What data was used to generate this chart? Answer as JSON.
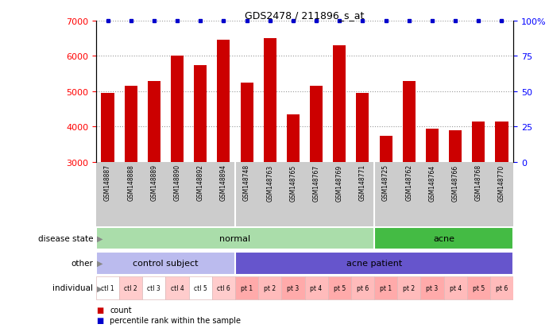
{
  "title": "GDS2478 / 211896_s_at",
  "samples": [
    "GSM148887",
    "GSM148888",
    "GSM148889",
    "GSM148890",
    "GSM148892",
    "GSM148894",
    "GSM148748",
    "GSM148763",
    "GSM148765",
    "GSM148767",
    "GSM148769",
    "GSM148771",
    "GSM148725",
    "GSM148762",
    "GSM148764",
    "GSM148766",
    "GSM148768",
    "GSM148770"
  ],
  "counts": [
    4950,
    5150,
    5300,
    6000,
    5750,
    6450,
    5250,
    6500,
    4350,
    5150,
    6300,
    4950,
    3750,
    5300,
    3950,
    3900,
    4150,
    4150
  ],
  "percentiles": [
    100,
    100,
    100,
    100,
    100,
    100,
    100,
    100,
    100,
    100,
    100,
    100,
    100,
    100,
    100,
    100,
    100,
    100
  ],
  "bar_color": "#cc0000",
  "dot_color": "#0000cc",
  "ylim_left": [
    3000,
    7000
  ],
  "ylim_right": [
    0,
    100
  ],
  "yticks_left": [
    3000,
    4000,
    5000,
    6000,
    7000
  ],
  "yticks_left_labels": [
    "3000",
    "4000",
    "5000",
    "6000",
    "7000"
  ],
  "yticks_right": [
    0,
    25,
    50,
    75,
    100
  ],
  "yticks_right_labels": [
    "0",
    "25",
    "50",
    "75",
    "100%"
  ],
  "grid_lines": [
    4000,
    5000,
    6000
  ],
  "disease_state_groups": [
    {
      "label": "normal",
      "start": 0,
      "end": 12,
      "color": "#aaddaa"
    },
    {
      "label": "acne",
      "start": 12,
      "end": 18,
      "color": "#44bb44"
    }
  ],
  "other_groups": [
    {
      "label": "control subject",
      "start": 0,
      "end": 6,
      "color": "#bbbbee"
    },
    {
      "label": "acne patient",
      "start": 6,
      "end": 18,
      "color": "#6655cc"
    }
  ],
  "individual_labels": [
    "ctl 1",
    "ctl 2",
    "ctl 3",
    "ctl 4",
    "ctl 5",
    "ctl 6",
    "pt 1",
    "pt 2",
    "pt 3",
    "pt 4",
    "pt 5",
    "pt 6",
    "pt 1",
    "pt 2",
    "pt 3",
    "pt 4",
    "pt 5",
    "pt 6"
  ],
  "individual_colors": [
    "#ffffff",
    "#ffcccc",
    "#ffffff",
    "#ffcccc",
    "#ffffff",
    "#ffcccc",
    "#ffaaaa",
    "#ffbbbb",
    "#ffaaaa",
    "#ffbbbb",
    "#ffaaaa",
    "#ffbbbb",
    "#ffaaaa",
    "#ffbbbb",
    "#ffaaaa",
    "#ffbbbb",
    "#ffaaaa",
    "#ffbbbb"
  ],
  "label_bg": "#cccccc",
  "row_label_names": [
    "disease state",
    "other",
    "individual"
  ],
  "legend_items": [
    {
      "color": "#cc0000",
      "marker": "s",
      "label": "count"
    },
    {
      "color": "#0000cc",
      "marker": "s",
      "label": "percentile rank within the sample"
    }
  ]
}
